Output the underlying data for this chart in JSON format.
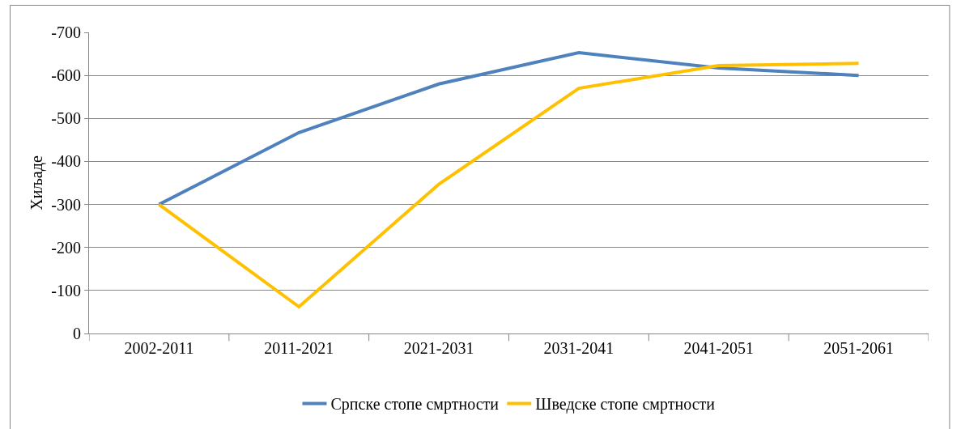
{
  "chart_data": {
    "type": "line",
    "ylabel": "Хиљаде",
    "categories": [
      "2002-2011",
      "2011-2021",
      "2021-2031",
      "2031-2041",
      "2041-2051",
      "2051-2061"
    ],
    "series": [
      {
        "name": "Српске стопе смртности",
        "color": "#4f81bd",
        "values": [
          -300,
          -467,
          -580,
          -653,
          -617,
          -600
        ]
      },
      {
        "name": "Шведске стопе смртности",
        "color": "#ffc000",
        "values": [
          -300,
          -62,
          -347,
          -570,
          -623,
          -628
        ]
      }
    ],
    "ylim": [
      0,
      -700
    ],
    "yticks": [
      0,
      -100,
      -200,
      -300,
      -400,
      -500,
      -600,
      -700
    ],
    "grid": "y",
    "legend": "bottom",
    "marker": "none",
    "line_style": "solid"
  }
}
